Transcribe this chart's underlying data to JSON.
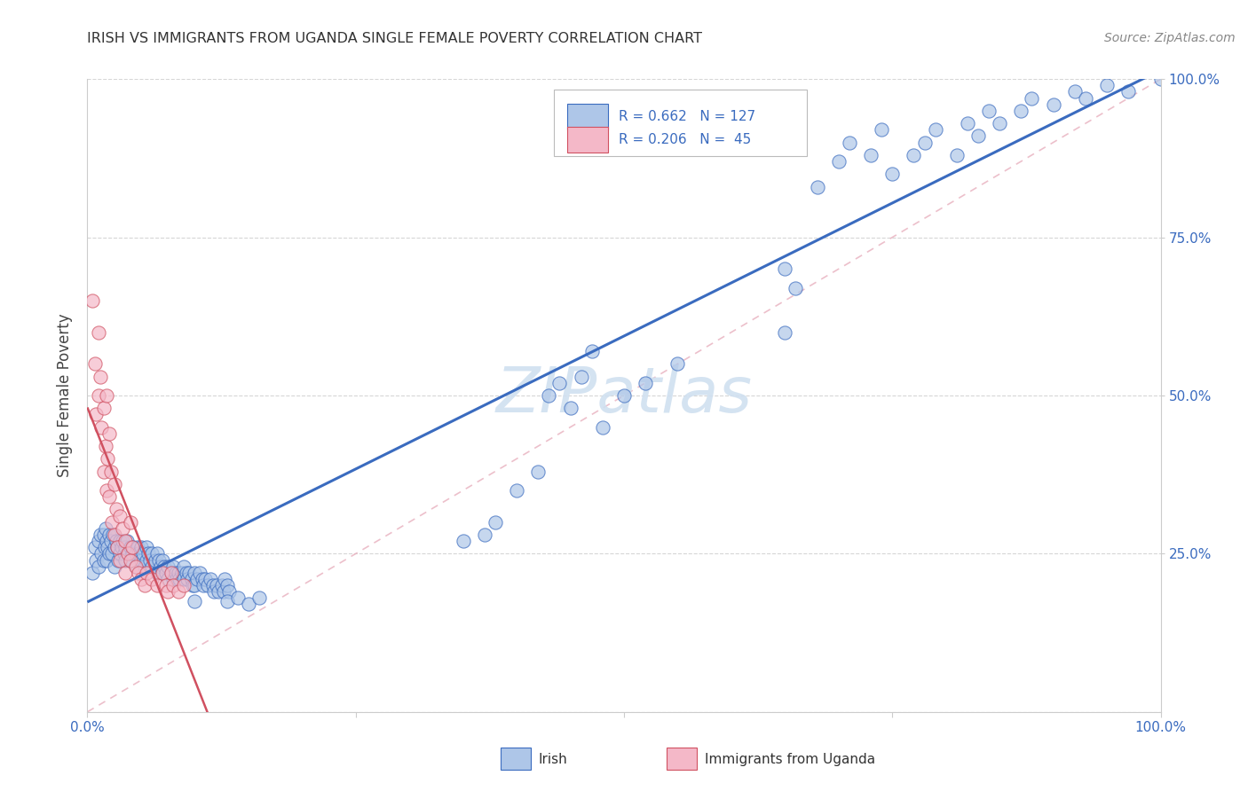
{
  "title": "IRISH VS IMMIGRANTS FROM UGANDA SINGLE FEMALE POVERTY CORRELATION CHART",
  "source": "Source: ZipAtlas.com",
  "ylabel": "Single Female Poverty",
  "legend_irish_R": "0.662",
  "legend_irish_N": "127",
  "legend_uganda_R": "0.206",
  "legend_uganda_N": "45",
  "irish_color": "#aec6e8",
  "uganda_color": "#f4b8c8",
  "irish_line_color": "#3a6bbf",
  "uganda_line_color": "#d05060",
  "legend_text_color": "#3a6bbf",
  "watermark_color": "#d0e0f0",
  "background_color": "#ffffff",
  "grid_color": "#cccccc",
  "title_color": "#333333",
  "source_color": "#888888",
  "ylabel_color": "#444444",
  "tick_color": "#3a6bbf"
}
